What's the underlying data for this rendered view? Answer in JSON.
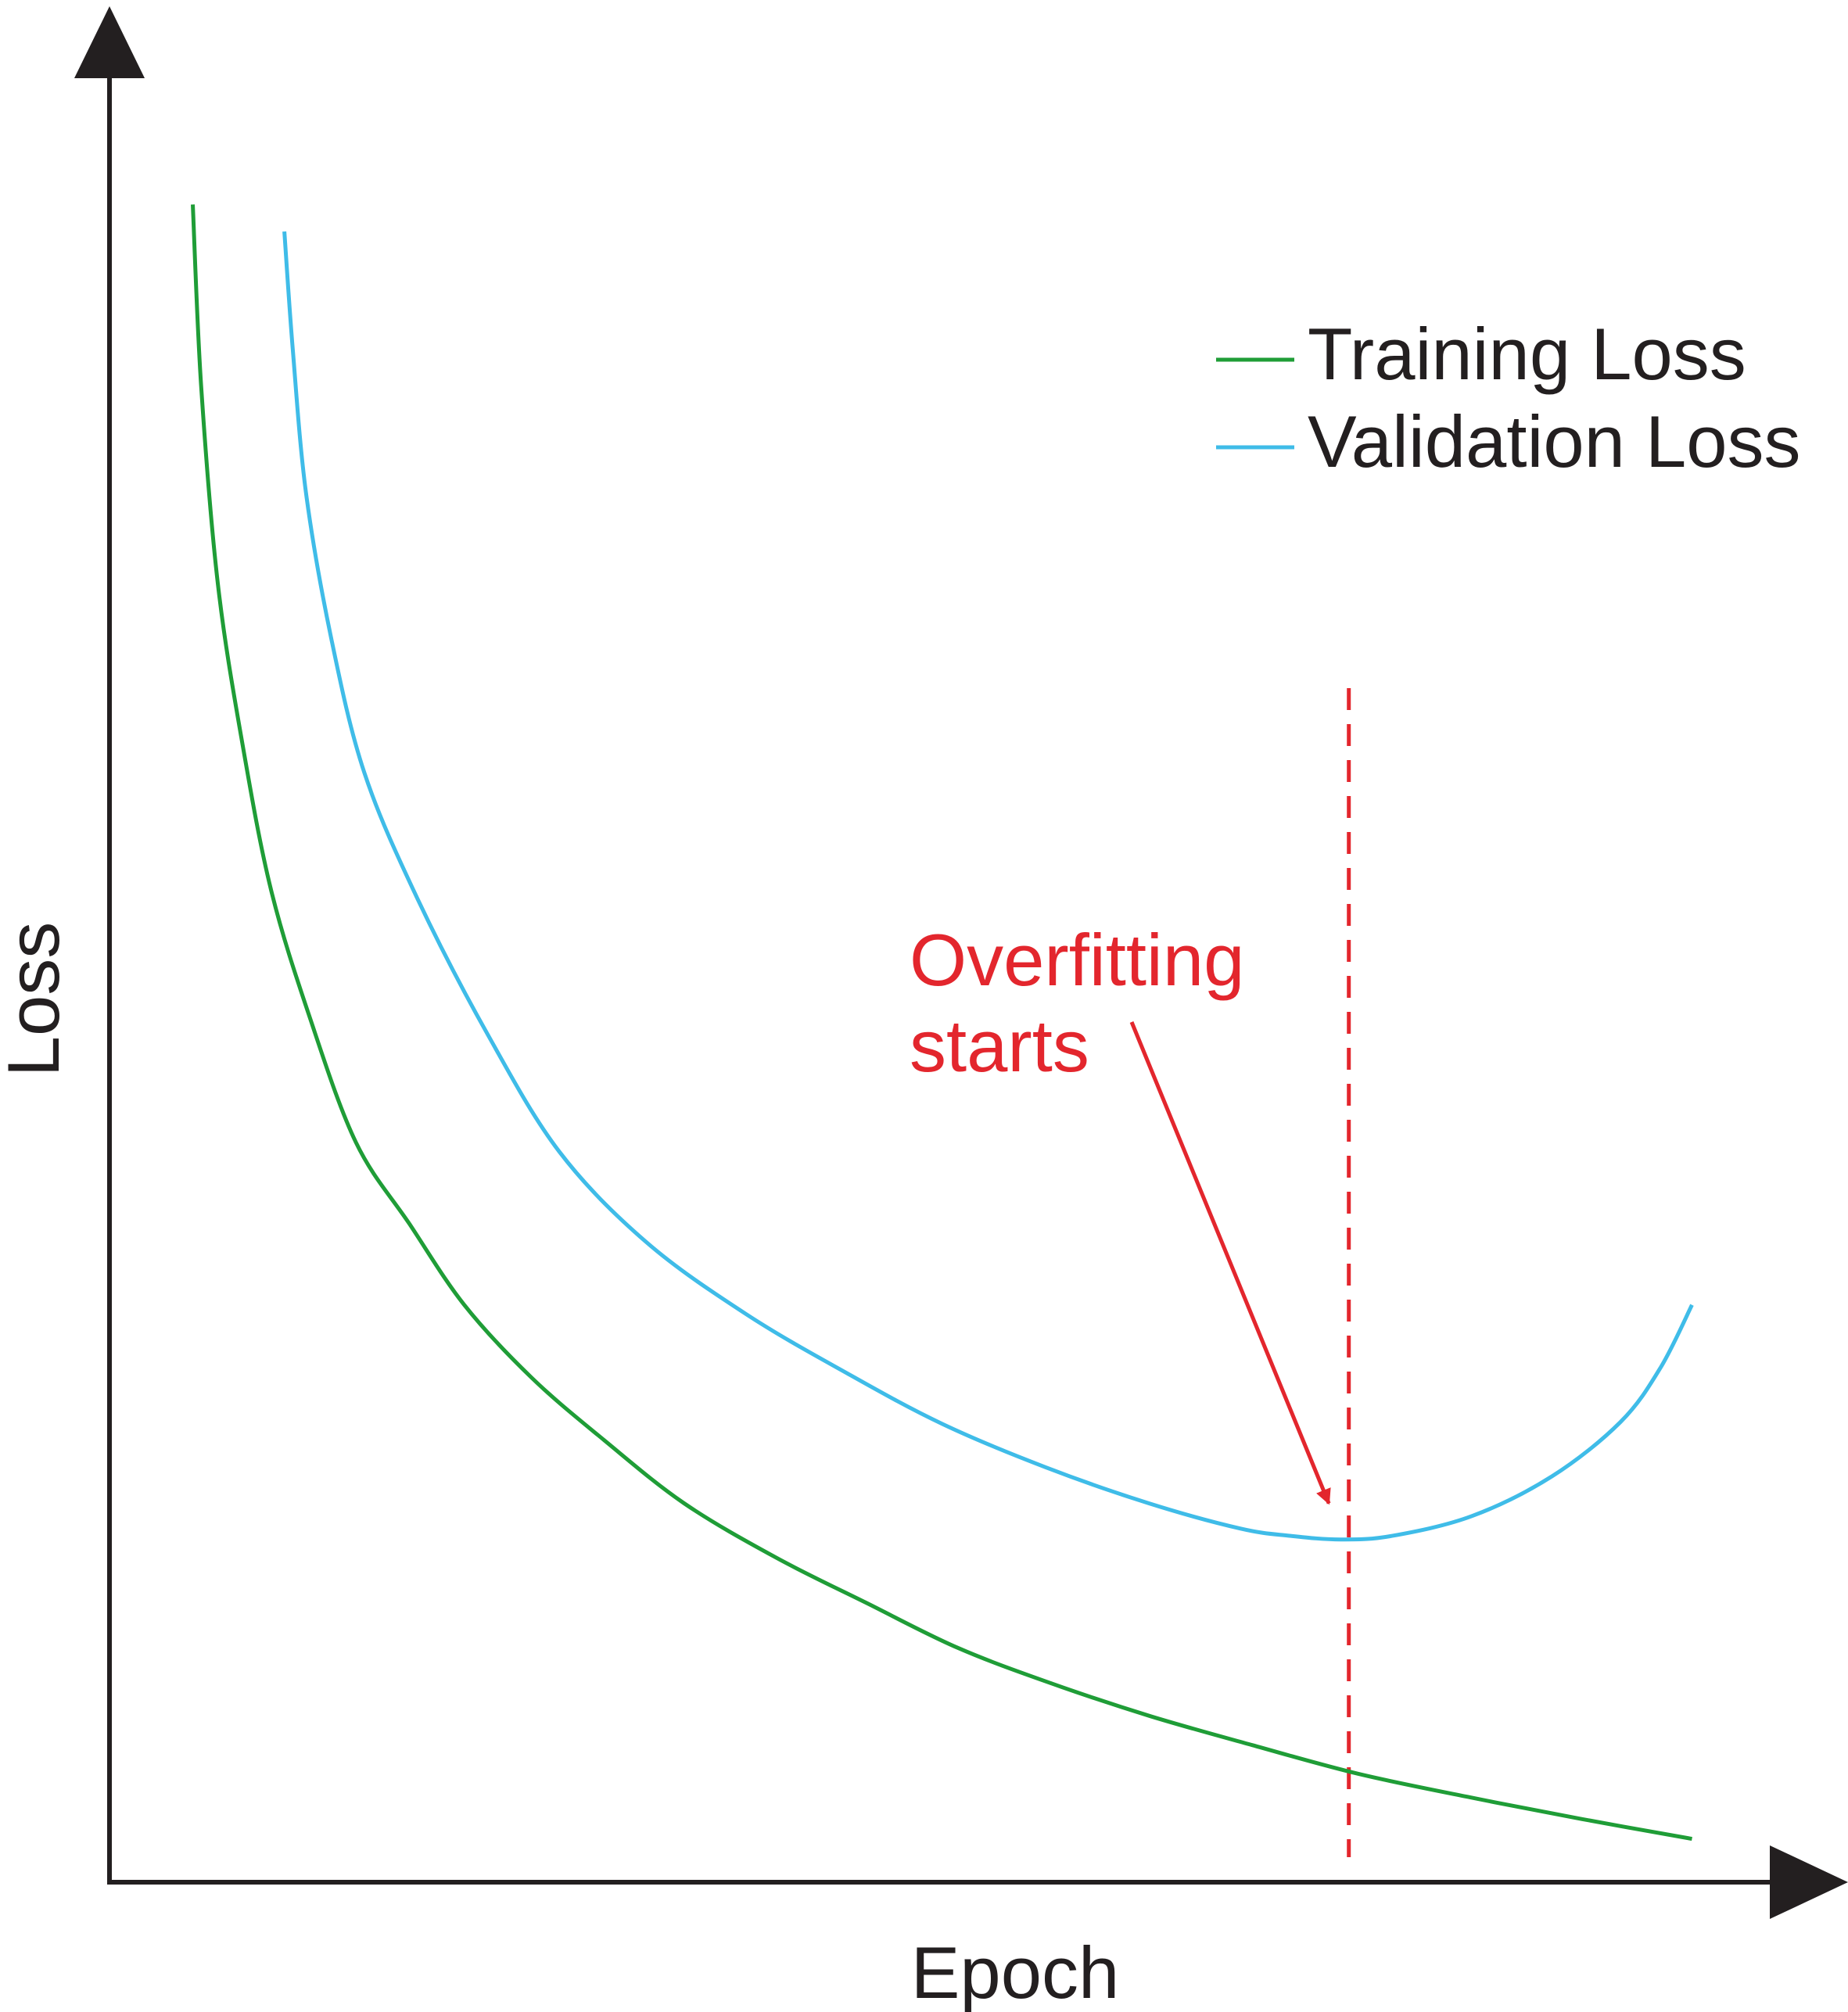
{
  "chart_data": {
    "type": "line",
    "title": "",
    "xlabel": "Epoch",
    "ylabel": "Loss",
    "ticks": "none",
    "grid": false,
    "legend": {
      "placement": "top-right",
      "entries": [
        {
          "name": "Training Loss",
          "color": "#1f9d37"
        },
        {
          "name": "Validation Loss",
          "color": "#3fbce8"
        }
      ]
    },
    "xlim": [
      0,
      100
    ],
    "ylim": [
      0,
      100
    ],
    "series": [
      {
        "name": "Training Loss",
        "color": "#1f9d37",
        "x": [
          5,
          5.5,
          6.5,
          8,
          9.7,
          12,
          14.8,
          18,
          21.3,
          25.3,
          29.7,
          34.5,
          40,
          45.4,
          50.9,
          56.6,
          62.5,
          68.6,
          75,
          81.7,
          88.4,
          95
        ],
        "y": [
          93,
          83,
          72,
          63,
          55,
          48,
          41,
          36.5,
          32,
          28,
          24.5,
          21,
          18,
          15.5,
          13,
          11,
          9.2,
          7.6,
          6,
          4.7,
          3.5,
          2.4
        ]
      },
      {
        "name": "Validation Loss",
        "color": "#3fbce8",
        "x": [
          10.5,
          11,
          11.8,
          13.3,
          15.3,
          18.5,
          22.7,
          27,
          32.2,
          38.2,
          44.3,
          50,
          56.2,
          62.4,
          67.9,
          70.9,
          73.9,
          77,
          81.8,
          86.6,
          90.7,
          93.1,
          95
        ],
        "y": [
          91.5,
          85,
          77,
          69,
          61.5,
          54.5,
          47,
          40.5,
          35.5,
          31.5,
          28.2,
          25.4,
          23,
          21,
          19.6,
          19.2,
          19,
          19.2,
          20.3,
          22.5,
          25.5,
          28.5,
          32
        ]
      }
    ],
    "annotations": [
      {
        "kind": "vline",
        "x": 74.4,
        "style": "dashed",
        "color": "#e3262d"
      },
      {
        "kind": "text",
        "lines": [
          "Overfitting",
          "starts"
        ],
        "color": "#e3262d",
        "arrow_to": {
          "x": 73.2,
          "y": 21
        }
      }
    ]
  }
}
